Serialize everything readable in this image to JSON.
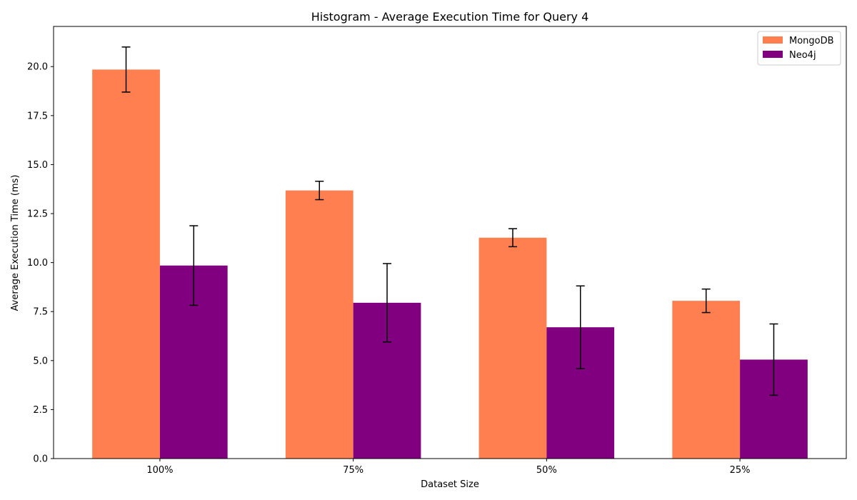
{
  "chart_data": {
    "type": "bar",
    "title": "Histogram - Average Execution Time for Query 4",
    "xlabel": "Dataset Size",
    "ylabel": "Average Execution Time (ms)",
    "categories": [
      "100%",
      "75%",
      "50%",
      "25%"
    ],
    "ylim": [
      0,
      22.05
    ],
    "yticks": [
      "0.0",
      "2.5",
      "5.0",
      "7.5",
      "10.0",
      "12.5",
      "15.0",
      "17.5",
      "20.0"
    ],
    "grid": false,
    "legend_position": "top-right",
    "series": [
      {
        "name": "MongoDB",
        "color": "#FF7F50",
        "values": [
          19.85,
          13.68,
          11.27,
          8.05
        ],
        "errors": [
          1.15,
          0.47,
          0.46,
          0.6
        ]
      },
      {
        "name": "Neo4j",
        "color": "#800080",
        "values": [
          9.85,
          7.95,
          6.7,
          5.05
        ],
        "errors": [
          2.03,
          2.0,
          2.11,
          1.82
        ]
      }
    ]
  }
}
